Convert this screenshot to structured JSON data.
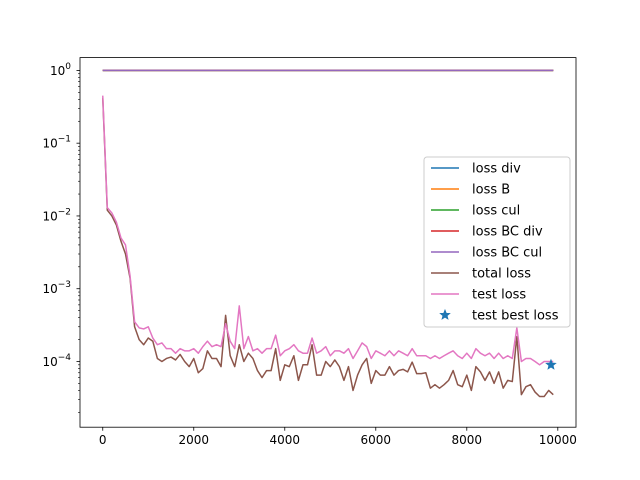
{
  "chart_data": {
    "type": "line",
    "yscale": "log",
    "xlim": [
      -500,
      10400
    ],
    "ylim": [
      1.25e-05,
      1.5
    ],
    "xticks": [
      0,
      2000,
      4000,
      6000,
      8000,
      10000
    ],
    "xtick_labels": [
      "0",
      "2000",
      "4000",
      "6000",
      "8000",
      "10000"
    ],
    "yticks": [
      0.0001,
      0.001,
      0.01,
      0.1,
      1
    ],
    "ytick_labels": [
      {
        "base": "10",
        "exp": "−4"
      },
      {
        "base": "10",
        "exp": "−3"
      },
      {
        "base": "10",
        "exp": "−2"
      },
      {
        "base": "10",
        "exp": "−1"
      },
      {
        "base": "10",
        "exp": "0"
      }
    ],
    "grid": false,
    "legend_position": "center-right",
    "x": [
      0,
      100,
      200,
      300,
      400,
      500,
      600,
      700,
      800,
      900,
      1000,
      1100,
      1200,
      1300,
      1400,
      1500,
      1600,
      1700,
      1800,
      1900,
      2000,
      2100,
      2200,
      2300,
      2400,
      2500,
      2600,
      2700,
      2800,
      2900,
      3000,
      3100,
      3200,
      3300,
      3400,
      3500,
      3600,
      3700,
      3800,
      3900,
      4000,
      4100,
      4200,
      4300,
      4400,
      4500,
      4600,
      4700,
      4800,
      4900,
      5000,
      5100,
      5200,
      5300,
      5400,
      5500,
      5600,
      5700,
      5800,
      5900,
      6000,
      6100,
      6200,
      6300,
      6400,
      6500,
      6600,
      6700,
      6800,
      6900,
      7000,
      7100,
      7200,
      7300,
      7400,
      7500,
      7600,
      7700,
      7800,
      7900,
      8000,
      8100,
      8200,
      8300,
      8400,
      8500,
      8600,
      8700,
      8800,
      8900,
      9000,
      9100,
      9200,
      9300,
      9400,
      9500,
      9600,
      9700,
      9800,
      9900
    ],
    "series": [
      {
        "name": "loss div",
        "color": "#1f77b4",
        "values": [
          1,
          1,
          1,
          1,
          1,
          1,
          1,
          1,
          1,
          1,
          1,
          1,
          1,
          1,
          1,
          1,
          1,
          1,
          1,
          1,
          1,
          1,
          1,
          1,
          1,
          1,
          1,
          1,
          1,
          1,
          1,
          1,
          1,
          1,
          1,
          1,
          1,
          1,
          1,
          1,
          1,
          1,
          1,
          1,
          1,
          1,
          1,
          1,
          1,
          1,
          1,
          1,
          1,
          1,
          1,
          1,
          1,
          1,
          1,
          1,
          1,
          1,
          1,
          1,
          1,
          1,
          1,
          1,
          1,
          1,
          1,
          1,
          1,
          1,
          1,
          1,
          1,
          1,
          1,
          1,
          1,
          1,
          1,
          1,
          1,
          1,
          1,
          1,
          1,
          1,
          1,
          1,
          1,
          1,
          1,
          1,
          1,
          1,
          1,
          1
        ]
      },
      {
        "name": "loss B",
        "color": "#ff7f0e",
        "values": [
          1,
          1,
          1,
          1,
          1,
          1,
          1,
          1,
          1,
          1,
          1,
          1,
          1,
          1,
          1,
          1,
          1,
          1,
          1,
          1,
          1,
          1,
          1,
          1,
          1,
          1,
          1,
          1,
          1,
          1,
          1,
          1,
          1,
          1,
          1,
          1,
          1,
          1,
          1,
          1,
          1,
          1,
          1,
          1,
          1,
          1,
          1,
          1,
          1,
          1,
          1,
          1,
          1,
          1,
          1,
          1,
          1,
          1,
          1,
          1,
          1,
          1,
          1,
          1,
          1,
          1,
          1,
          1,
          1,
          1,
          1,
          1,
          1,
          1,
          1,
          1,
          1,
          1,
          1,
          1,
          1,
          1,
          1,
          1,
          1,
          1,
          1,
          1,
          1,
          1,
          1,
          1,
          1,
          1,
          1,
          1,
          1,
          1,
          1,
          1
        ]
      },
      {
        "name": "loss cul",
        "color": "#2ca02c",
        "values": [
          1,
          1,
          1,
          1,
          1,
          1,
          1,
          1,
          1,
          1,
          1,
          1,
          1,
          1,
          1,
          1,
          1,
          1,
          1,
          1,
          1,
          1,
          1,
          1,
          1,
          1,
          1,
          1,
          1,
          1,
          1,
          1,
          1,
          1,
          1,
          1,
          1,
          1,
          1,
          1,
          1,
          1,
          1,
          1,
          1,
          1,
          1,
          1,
          1,
          1,
          1,
          1,
          1,
          1,
          1,
          1,
          1,
          1,
          1,
          1,
          1,
          1,
          1,
          1,
          1,
          1,
          1,
          1,
          1,
          1,
          1,
          1,
          1,
          1,
          1,
          1,
          1,
          1,
          1,
          1,
          1,
          1,
          1,
          1,
          1,
          1,
          1,
          1,
          1,
          1,
          1,
          1,
          1,
          1,
          1,
          1,
          1,
          1,
          1,
          1
        ]
      },
      {
        "name": "loss BC div",
        "color": "#d62728",
        "values": [
          1,
          1,
          1,
          1,
          1,
          1,
          1,
          1,
          1,
          1,
          1,
          1,
          1,
          1,
          1,
          1,
          1,
          1,
          1,
          1,
          1,
          1,
          1,
          1,
          1,
          1,
          1,
          1,
          1,
          1,
          1,
          1,
          1,
          1,
          1,
          1,
          1,
          1,
          1,
          1,
          1,
          1,
          1,
          1,
          1,
          1,
          1,
          1,
          1,
          1,
          1,
          1,
          1,
          1,
          1,
          1,
          1,
          1,
          1,
          1,
          1,
          1,
          1,
          1,
          1,
          1,
          1,
          1,
          1,
          1,
          1,
          1,
          1,
          1,
          1,
          1,
          1,
          1,
          1,
          1,
          1,
          1,
          1,
          1,
          1,
          1,
          1,
          1,
          1,
          1,
          1,
          1,
          1,
          1,
          1,
          1,
          1,
          1,
          1,
          1
        ]
      },
      {
        "name": "loss BC cul",
        "color": "#9467bd",
        "values": [
          1,
          1,
          1,
          1,
          1,
          1,
          1,
          1,
          1,
          1,
          1,
          1,
          1,
          1,
          1,
          1,
          1,
          1,
          1,
          1,
          1,
          1,
          1,
          1,
          1,
          1,
          1,
          1,
          1,
          1,
          1,
          1,
          1,
          1,
          1,
          1,
          1,
          1,
          1,
          1,
          1,
          1,
          1,
          1,
          1,
          1,
          1,
          1,
          1,
          1,
          1,
          1,
          1,
          1,
          1,
          1,
          1,
          1,
          1,
          1,
          1,
          1,
          1,
          1,
          1,
          1,
          1,
          1,
          1,
          1,
          1,
          1,
          1,
          1,
          1,
          1,
          1,
          1,
          1,
          1,
          1,
          1,
          1,
          1,
          1,
          1,
          1,
          1,
          1,
          1,
          1,
          1,
          1,
          1,
          1,
          1,
          1,
          1,
          1,
          1
        ]
      },
      {
        "name": "total loss",
        "color": "#8c564b",
        "values": [
          0.42,
          0.012,
          0.01,
          0.0075,
          0.0045,
          0.003,
          0.0014,
          0.0003,
          0.0002,
          0.00017,
          0.00021,
          0.00019,
          0.00011,
          0.0001,
          0.00011,
          0.000115,
          0.000105,
          0.000125,
          0.0001,
          8.5e-05,
          0.00011,
          7e-05,
          8e-05,
          0.00014,
          0.00011,
          0.00011,
          8.5e-05,
          0.00043,
          0.00012,
          8.5e-05,
          0.00017,
          0.0001,
          0.00013,
          0.00011,
          7.5e-05,
          6e-05,
          7.5e-05,
          7.5e-05,
          0.00015,
          5.5e-05,
          9e-05,
          8.5e-05,
          0.00012,
          5.5e-05,
          9e-05,
          9e-05,
          0.00017,
          6.5e-05,
          6.5e-05,
          0.0001,
          8.5e-05,
          0.000105,
          8.5e-05,
          5.5e-05,
          8.5e-05,
          4e-05,
          6.5e-05,
          9e-05,
          0.00011,
          5e-05,
          7.5e-05,
          6.5e-05,
          6.5e-05,
          8.5e-05,
          6.5e-05,
          7.5e-05,
          7.8e-05,
          7.2e-05,
          9.8e-05,
          6.8e-05,
          6.8e-05,
          7e-05,
          4.3e-05,
          4.8e-05,
          4.3e-05,
          4.8e-05,
          5.5e-05,
          7.5e-05,
          4.8e-05,
          4.5e-05,
          6.5e-05,
          4e-05,
          8.5e-05,
          7.2e-05,
          5.5e-05,
          7.2e-05,
          5e-05,
          7.2e-05,
          4.3e-05,
          5.5e-05,
          5.3e-05,
          0.00022,
          3.5e-05,
          4.5e-05,
          4.8e-05,
          3.8e-05,
          3.3e-05,
          3.3e-05,
          4e-05,
          3.5e-05
        ]
      },
      {
        "name": "test loss",
        "color": "#e377c2",
        "values": [
          0.45,
          0.013,
          0.011,
          0.0082,
          0.005,
          0.004,
          0.0015,
          0.00035,
          0.00029,
          0.00028,
          0.0003,
          0.00021,
          0.00017,
          0.00018,
          0.00015,
          0.00015,
          0.00013,
          0.00015,
          0.00014,
          0.00014,
          0.00015,
          0.00013,
          0.00016,
          0.00019,
          0.00016,
          0.00017,
          0.00016,
          0.00033,
          0.00019,
          0.00015,
          0.00058,
          0.00015,
          0.00022,
          0.00014,
          0.00015,
          0.00013,
          0.00015,
          0.00015,
          0.00023,
          0.00012,
          0.00014,
          0.00015,
          0.00017,
          0.00014,
          0.00013,
          0.00013,
          0.00021,
          0.00013,
          0.00014,
          0.00016,
          0.00012,
          0.00014,
          0.00014,
          0.00013,
          0.00015,
          0.00011,
          0.00014,
          0.00018,
          0.00016,
          0.00011,
          0.00014,
          0.00013,
          0.00012,
          0.00014,
          0.00012,
          0.00014,
          0.00013,
          0.00012,
          0.00015,
          0.00012,
          0.00012,
          0.00012,
          0.00011,
          0.00012,
          0.00011,
          0.00012,
          0.00013,
          0.00014,
          0.00012,
          0.00011,
          0.00013,
          0.00011,
          0.00015,
          0.00013,
          0.00012,
          0.00013,
          0.00011,
          0.00013,
          0.00011,
          0.00012,
          0.00011,
          0.00029,
          0.0001,
          0.00011,
          0.00011,
          0.0001,
          9e-05,
          0.0001,
          0.0001,
          0.0001
        ]
      }
    ],
    "scatter": [
      {
        "name": "test best loss",
        "color": "#1f77b4",
        "marker": "star",
        "x": [
          9850
        ],
        "y": [
          9e-05
        ]
      }
    ],
    "legend": [
      "loss div",
      "loss B",
      "loss cul",
      "loss BC div",
      "loss BC cul",
      "total loss",
      "test loss",
      "test best loss"
    ]
  }
}
